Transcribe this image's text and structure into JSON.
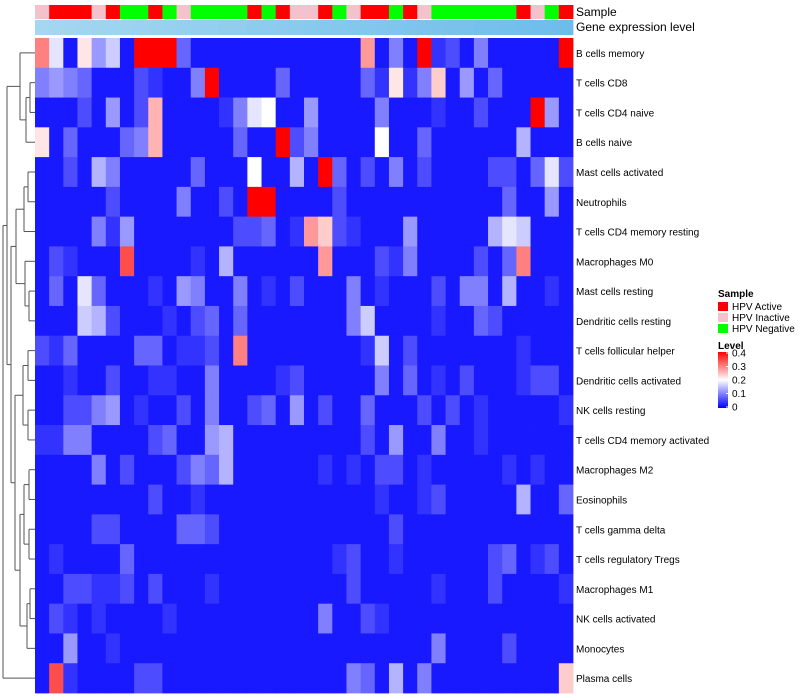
{
  "chart_data": {
    "type": "heatmap",
    "annotation_labels": [
      "Sample",
      "Gene expression level"
    ],
    "rows": [
      "B cells memory",
      "T cells CD8",
      "T cells CD4 naive",
      "B cells naive",
      "Mast cells activated",
      "Neutrophils",
      "T cells CD4 memory resting",
      "Macrophages M0",
      "Mast cells resting",
      "Dendritic cells resting",
      "T cells follicular helper",
      "Dendritic cells activated",
      "NK cells resting",
      "T cells CD4 memory activated",
      "Macrophages M2",
      "Eosinophils",
      "T cells gamma delta",
      "T cells regulatory  Tregs",
      "Macrophages M1",
      "NK cells activated",
      "Monocytes",
      "Plasma cells"
    ],
    "samples": [
      "Inactive",
      "Active",
      "Active",
      "Active",
      "Inactive",
      "Active",
      "Negative",
      "Negative",
      "Active",
      "Negative",
      "Inactive",
      "Negative",
      "Negative",
      "Negative",
      "Negative",
      "Active",
      "Negative",
      "Active",
      "Inactive",
      "Inactive",
      "Active",
      "Negative",
      "Inactive",
      "Active",
      "Active",
      "Negative",
      "Active",
      "Inactive",
      "Negative",
      "Negative",
      "Negative",
      "Negative",
      "Negative",
      "Negative",
      "Active",
      "Inactive",
      "Negative",
      "Active"
    ],
    "gene_expression_level": [
      0.02,
      0.04,
      0.06,
      0.08,
      0.1,
      0.12,
      0.14,
      0.16,
      0.18,
      0.2,
      0.22,
      0.24,
      0.26,
      0.28,
      0.3,
      0.32,
      0.34,
      0.36,
      0.38,
      0.4,
      0.42,
      0.44,
      0.46,
      0.48,
      0.5,
      0.52,
      0.54,
      0.56,
      0.58,
      0.6,
      0.62,
      0.64,
      0.66,
      0.68,
      0.7,
      0.72,
      0.74,
      0.76
    ],
    "values": [
      [
        0.3,
        0.18,
        0.02,
        0.22,
        0.12,
        0.16,
        0.02,
        0.4,
        0.4,
        0.4,
        0.08,
        0.02,
        0.02,
        0.02,
        0.02,
        0.02,
        0.02,
        0.02,
        0.02,
        0.02,
        0.02,
        0.02,
        0.02,
        0.28,
        0.02,
        0.1,
        0.02,
        0.4,
        0.04,
        0.06,
        0.02,
        0.1,
        0.02,
        0.02,
        0.02,
        0.02,
        0.02,
        0.4
      ],
      [
        0.1,
        0.12,
        0.1,
        0.08,
        0.02,
        0.02,
        0.02,
        0.06,
        0.04,
        0.02,
        0.02,
        0.1,
        0.4,
        0.02,
        0.02,
        0.02,
        0.02,
        0.08,
        0.02,
        0.02,
        0.02,
        0.02,
        0.02,
        0.08,
        0.04,
        0.22,
        0.04,
        0.1,
        0.24,
        0.02,
        0.12,
        0.02,
        0.08,
        0.02,
        0.02,
        0.02,
        0.02,
        0.02
      ],
      [
        0.02,
        0.02,
        0.02,
        0.06,
        0.02,
        0.12,
        0.02,
        0.06,
        0.26,
        0.02,
        0.02,
        0.02,
        0.02,
        0.04,
        0.1,
        0.18,
        0.2,
        0.02,
        0.02,
        0.12,
        0.02,
        0.02,
        0.02,
        0.02,
        0.1,
        0.02,
        0.02,
        0.02,
        0.04,
        0.02,
        0.02,
        0.06,
        0.02,
        0.02,
        0.02,
        0.4,
        0.12,
        0.02
      ],
      [
        0.22,
        0.02,
        0.08,
        0.02,
        0.02,
        0.02,
        0.08,
        0.1,
        0.26,
        0.02,
        0.02,
        0.02,
        0.02,
        0.02,
        0.08,
        0.02,
        0.02,
        0.4,
        0.06,
        0.1,
        0.02,
        0.02,
        0.02,
        0.02,
        0.2,
        0.02,
        0.02,
        0.08,
        0.02,
        0.02,
        0.02,
        0.02,
        0.02,
        0.02,
        0.14,
        0.02,
        0.02,
        0.02
      ],
      [
        0.02,
        0.02,
        0.06,
        0.02,
        0.14,
        0.1,
        0.02,
        0.02,
        0.02,
        0.02,
        0.02,
        0.08,
        0.02,
        0.02,
        0.02,
        0.2,
        0.02,
        0.02,
        0.14,
        0.02,
        0.4,
        0.08,
        0.02,
        0.06,
        0.02,
        0.1,
        0.02,
        0.06,
        0.02,
        0.02,
        0.02,
        0.02,
        0.06,
        0.06,
        0.02,
        0.08,
        0.18,
        0.06
      ],
      [
        0.02,
        0.02,
        0.02,
        0.02,
        0.02,
        0.06,
        0.02,
        0.02,
        0.02,
        0.02,
        0.1,
        0.02,
        0.02,
        0.06,
        0.02,
        0.4,
        0.4,
        0.02,
        0.02,
        0.02,
        0.02,
        0.06,
        0.02,
        0.02,
        0.02,
        0.02,
        0.02,
        0.02,
        0.02,
        0.02,
        0.02,
        0.02,
        0.02,
        0.08,
        0.02,
        0.02,
        0.12,
        0.02
      ],
      [
        0.02,
        0.02,
        0.02,
        0.02,
        0.1,
        0.04,
        0.12,
        0.02,
        0.02,
        0.02,
        0.02,
        0.02,
        0.02,
        0.02,
        0.06,
        0.06,
        0.08,
        0.02,
        0.04,
        0.28,
        0.24,
        0.06,
        0.04,
        0.02,
        0.02,
        0.02,
        0.12,
        0.02,
        0.02,
        0.02,
        0.02,
        0.02,
        0.14,
        0.18,
        0.16,
        0.02,
        0.02,
        0.02
      ],
      [
        0.02,
        0.06,
        0.04,
        0.02,
        0.02,
        0.02,
        0.34,
        0.02,
        0.02,
        0.02,
        0.02,
        0.04,
        0.02,
        0.14,
        0.02,
        0.02,
        0.02,
        0.02,
        0.02,
        0.02,
        0.28,
        0.02,
        0.02,
        0.02,
        0.06,
        0.04,
        0.1,
        0.02,
        0.02,
        0.02,
        0.02,
        0.06,
        0.02,
        0.08,
        0.3,
        0.02,
        0.02,
        0.02
      ],
      [
        0.02,
        0.08,
        0.02,
        0.18,
        0.08,
        0.02,
        0.02,
        0.02,
        0.04,
        0.02,
        0.12,
        0.1,
        0.02,
        0.02,
        0.1,
        0.02,
        0.04,
        0.02,
        0.06,
        0.02,
        0.02,
        0.02,
        0.1,
        0.02,
        0.04,
        0.02,
        0.02,
        0.02,
        0.06,
        0.02,
        0.1,
        0.1,
        0.02,
        0.14,
        0.02,
        0.02,
        0.04,
        0.02
      ],
      [
        0.02,
        0.02,
        0.02,
        0.16,
        0.14,
        0.06,
        0.02,
        0.02,
        0.02,
        0.04,
        0.02,
        0.06,
        0.08,
        0.02,
        0.08,
        0.02,
        0.02,
        0.02,
        0.02,
        0.02,
        0.02,
        0.02,
        0.1,
        0.16,
        0.02,
        0.02,
        0.02,
        0.02,
        0.04,
        0.02,
        0.02,
        0.08,
        0.06,
        0.02,
        0.02,
        0.02,
        0.02,
        0.02
      ],
      [
        0.06,
        0.04,
        0.08,
        0.02,
        0.02,
        0.02,
        0.02,
        0.08,
        0.08,
        0.02,
        0.04,
        0.04,
        0.06,
        0.02,
        0.3,
        0.02,
        0.02,
        0.02,
        0.02,
        0.02,
        0.02,
        0.02,
        0.02,
        0.04,
        0.16,
        0.02,
        0.06,
        0.02,
        0.02,
        0.02,
        0.02,
        0.02,
        0.02,
        0.02,
        0.04,
        0.02,
        0.02,
        0.02
      ],
      [
        0.02,
        0.02,
        0.04,
        0.02,
        0.02,
        0.06,
        0.02,
        0.02,
        0.04,
        0.04,
        0.02,
        0.02,
        0.1,
        0.02,
        0.02,
        0.02,
        0.02,
        0.04,
        0.06,
        0.02,
        0.02,
        0.02,
        0.02,
        0.02,
        0.1,
        0.02,
        0.08,
        0.02,
        0.04,
        0.02,
        0.06,
        0.02,
        0.02,
        0.02,
        0.04,
        0.06,
        0.06,
        0.02
      ],
      [
        0.02,
        0.02,
        0.06,
        0.06,
        0.1,
        0.12,
        0.02,
        0.04,
        0.02,
        0.02,
        0.06,
        0.02,
        0.1,
        0.02,
        0.02,
        0.06,
        0.08,
        0.02,
        0.12,
        0.02,
        0.06,
        0.02,
        0.02,
        0.08,
        0.02,
        0.02,
        0.02,
        0.06,
        0.02,
        0.06,
        0.02,
        0.04,
        0.02,
        0.02,
        0.02,
        0.02,
        0.02,
        0.04
      ],
      [
        0.04,
        0.04,
        0.1,
        0.1,
        0.02,
        0.02,
        0.02,
        0.02,
        0.06,
        0.08,
        0.02,
        0.02,
        0.12,
        0.14,
        0.02,
        0.02,
        0.02,
        0.02,
        0.02,
        0.02,
        0.02,
        0.02,
        0.02,
        0.06,
        0.02,
        0.12,
        0.02,
        0.02,
        0.1,
        0.02,
        0.02,
        0.04,
        0.02,
        0.02,
        0.02,
        0.02,
        0.02,
        0.02
      ],
      [
        0.02,
        0.02,
        0.02,
        0.02,
        0.1,
        0.02,
        0.06,
        0.02,
        0.02,
        0.02,
        0.06,
        0.1,
        0.08,
        0.14,
        0.02,
        0.02,
        0.02,
        0.02,
        0.02,
        0.02,
        0.04,
        0.02,
        0.04,
        0.02,
        0.06,
        0.06,
        0.02,
        0.04,
        0.02,
        0.02,
        0.02,
        0.02,
        0.02,
        0.04,
        0.02,
        0.04,
        0.02,
        0.02
      ],
      [
        0.02,
        0.02,
        0.02,
        0.02,
        0.02,
        0.02,
        0.02,
        0.02,
        0.06,
        0.02,
        0.02,
        0.04,
        0.02,
        0.02,
        0.02,
        0.02,
        0.02,
        0.02,
        0.02,
        0.02,
        0.02,
        0.02,
        0.02,
        0.02,
        0.04,
        0.02,
        0.02,
        0.04,
        0.06,
        0.02,
        0.02,
        0.02,
        0.02,
        0.02,
        0.14,
        0.02,
        0.02,
        0.08
      ],
      [
        0.02,
        0.02,
        0.02,
        0.02,
        0.06,
        0.06,
        0.02,
        0.02,
        0.02,
        0.02,
        0.08,
        0.08,
        0.06,
        0.02,
        0.02,
        0.02,
        0.02,
        0.02,
        0.02,
        0.02,
        0.02,
        0.02,
        0.02,
        0.02,
        0.02,
        0.06,
        0.02,
        0.02,
        0.02,
        0.02,
        0.02,
        0.02,
        0.02,
        0.02,
        0.02,
        0.02,
        0.02,
        0.02
      ],
      [
        0.02,
        0.04,
        0.02,
        0.02,
        0.02,
        0.02,
        0.08,
        0.02,
        0.02,
        0.02,
        0.02,
        0.02,
        0.02,
        0.02,
        0.02,
        0.02,
        0.02,
        0.02,
        0.02,
        0.02,
        0.02,
        0.04,
        0.06,
        0.02,
        0.02,
        0.04,
        0.02,
        0.02,
        0.02,
        0.02,
        0.02,
        0.02,
        0.06,
        0.08,
        0.02,
        0.04,
        0.06,
        0.02
      ],
      [
        0.02,
        0.02,
        0.06,
        0.06,
        0.04,
        0.04,
        0.06,
        0.02,
        0.06,
        0.02,
        0.02,
        0.02,
        0.04,
        0.02,
        0.02,
        0.02,
        0.02,
        0.02,
        0.02,
        0.02,
        0.02,
        0.02,
        0.06,
        0.02,
        0.02,
        0.02,
        0.02,
        0.02,
        0.04,
        0.02,
        0.02,
        0.02,
        0.06,
        0.02,
        0.02,
        0.02,
        0.02,
        0.04
      ],
      [
        0.02,
        0.06,
        0.04,
        0.02,
        0.04,
        0.02,
        0.02,
        0.02,
        0.02,
        0.04,
        0.02,
        0.02,
        0.02,
        0.02,
        0.02,
        0.02,
        0.02,
        0.02,
        0.02,
        0.02,
        0.1,
        0.02,
        0.02,
        0.06,
        0.04,
        0.02,
        0.02,
        0.02,
        0.02,
        0.02,
        0.02,
        0.02,
        0.02,
        0.02,
        0.02,
        0.02,
        0.02,
        0.02
      ],
      [
        0.02,
        0.02,
        0.12,
        0.02,
        0.02,
        0.04,
        0.02,
        0.02,
        0.02,
        0.02,
        0.02,
        0.02,
        0.02,
        0.02,
        0.02,
        0.02,
        0.02,
        0.02,
        0.02,
        0.02,
        0.02,
        0.02,
        0.02,
        0.02,
        0.02,
        0.02,
        0.02,
        0.02,
        0.1,
        0.02,
        0.02,
        0.02,
        0.02,
        0.06,
        0.02,
        0.02,
        0.02,
        0.02
      ],
      [
        0.02,
        0.34,
        0.04,
        0.02,
        0.02,
        0.02,
        0.02,
        0.06,
        0.06,
        0.02,
        0.02,
        0.02,
        0.02,
        0.02,
        0.02,
        0.02,
        0.02,
        0.02,
        0.02,
        0.02,
        0.02,
        0.02,
        0.1,
        0.08,
        0.02,
        0.14,
        0.02,
        0.1,
        0.02,
        0.02,
        0.02,
        0.02,
        0.02,
        0.02,
        0.02,
        0.02,
        0.02,
        0.24
      ]
    ],
    "legend": {
      "sample_title": "Sample",
      "sample_entries": [
        {
          "key": "Active",
          "label": "HPV Active",
          "color": "#ff0000"
        },
        {
          "key": "Inactive",
          "label": "HPV Inactive",
          "color": "#f4c2cc"
        },
        {
          "key": "Negative",
          "label": "HPV Negative",
          "color": "#00ff00"
        }
      ],
      "level_title": "Level",
      "level_ticks": [
        "0.4",
        "0.3",
        "0.2",
        "0.1",
        "0"
      ],
      "level_range": [
        0,
        0.4
      ]
    },
    "colors": {
      "low": "#0000ff",
      "mid": "#ffffff",
      "high": "#ff0000",
      "expr_low": "#a6d8f0",
      "expr_high": "#5bb4ea"
    },
    "dendrogram": "row clustering tree on left"
  }
}
